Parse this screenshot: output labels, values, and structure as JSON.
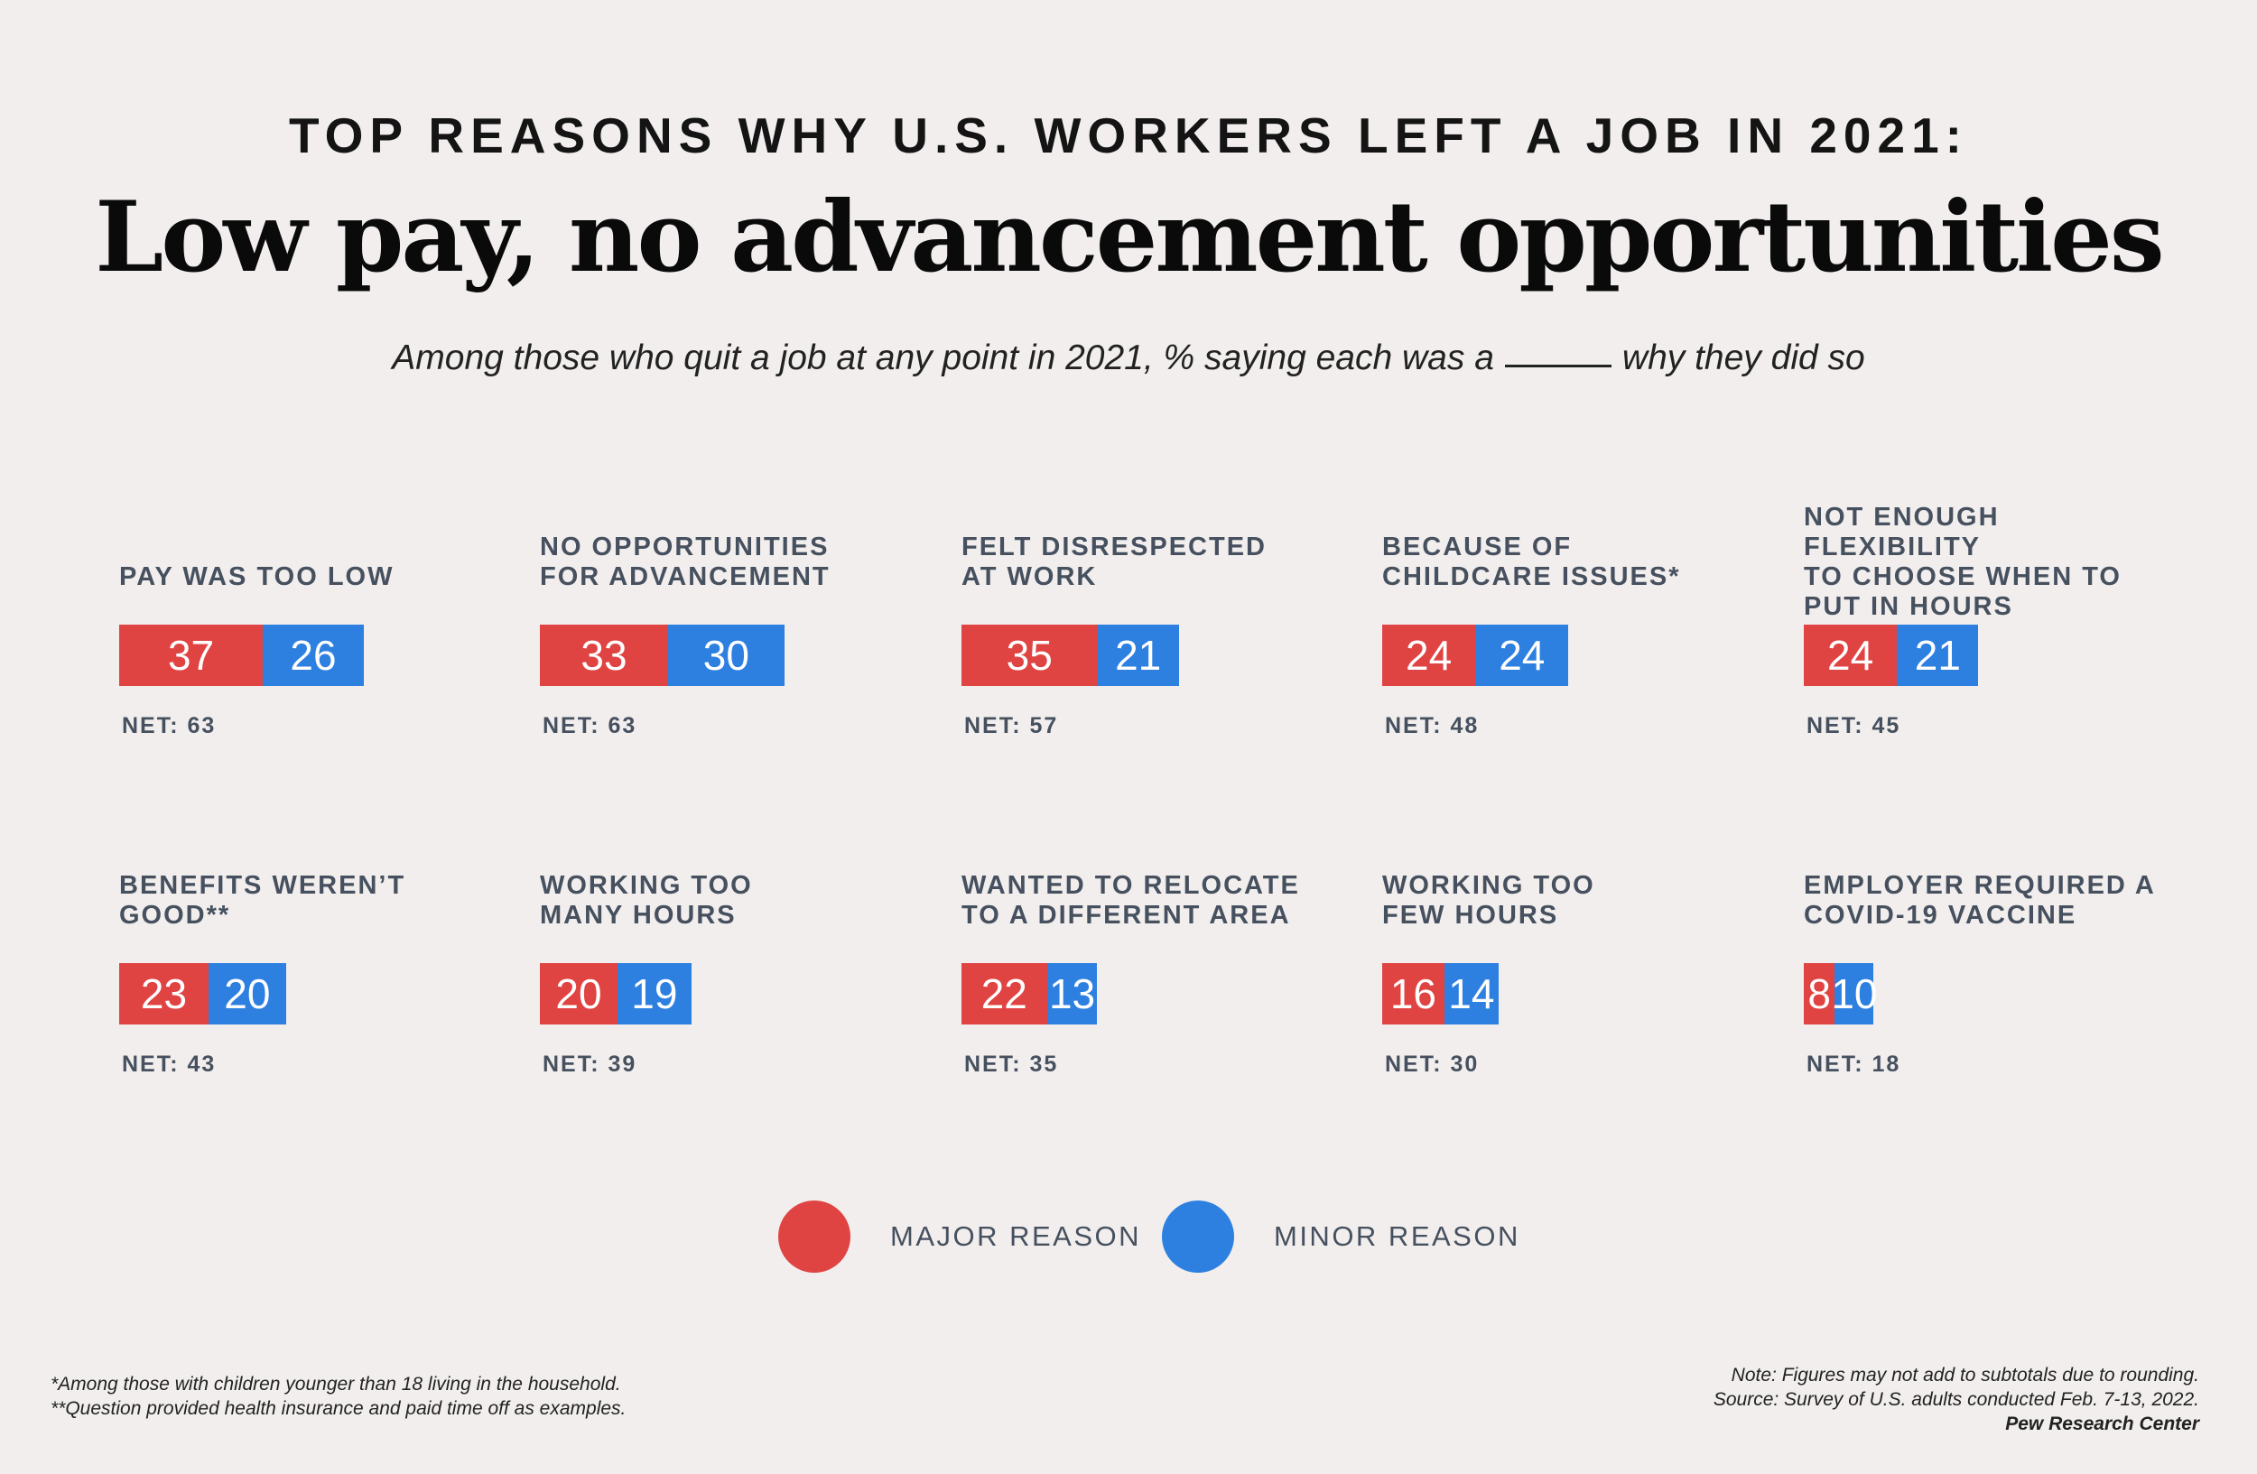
{
  "header": {
    "kicker": "TOP REASONS WHY U.S. WORKERS LEFT A JOB IN 2021:",
    "title": "Low pay, no advancement opportunities",
    "subtitle_before": "Among those who quit a job at any point in 2021, % saying each was a",
    "subtitle_after": "why they did so"
  },
  "colors": {
    "major": "#e04442",
    "minor": "#2d80e0",
    "background": "#f1eeed"
  },
  "chart_data": {
    "type": "bar",
    "orientation": "horizontal",
    "stacked": true,
    "series": [
      {
        "name": "MAJOR REASON",
        "values": [
          37,
          33,
          35,
          24,
          24,
          23,
          20,
          22,
          16,
          8
        ]
      },
      {
        "name": "MINOR REASON",
        "values": [
          26,
          30,
          21,
          24,
          21,
          20,
          19,
          13,
          14,
          10
        ]
      }
    ],
    "items": [
      {
        "label_lines": [
          "PAY WAS TOO LOW"
        ],
        "major": 37,
        "minor": 26,
        "net": "NET: 63"
      },
      {
        "label_lines": [
          "NO OPPORTUNITIES",
          "FOR ADVANCEMENT"
        ],
        "major": 33,
        "minor": 30,
        "net": "NET: 63"
      },
      {
        "label_lines": [
          "FELT DISRESPECTED",
          "AT WORK"
        ],
        "major": 35,
        "minor": 21,
        "net": "NET: 57"
      },
      {
        "label_lines": [
          "BECAUSE OF",
          "CHILDCARE ISSUES*"
        ],
        "major": 24,
        "minor": 24,
        "net": "NET: 48"
      },
      {
        "label_lines": [
          "NOT ENOUGH FLEXIBILITY",
          "TO CHOOSE WHEN TO",
          "PUT IN HOURS"
        ],
        "major": 24,
        "minor": 21,
        "net": "NET: 45"
      },
      {
        "label_lines": [
          "BENEFITS WEREN’T",
          "GOOD**"
        ],
        "major": 23,
        "minor": 20,
        "net": "NET: 43"
      },
      {
        "label_lines": [
          "WORKING TOO",
          "MANY HOURS"
        ],
        "major": 20,
        "minor": 19,
        "net": "NET: 39"
      },
      {
        "label_lines": [
          "WANTED TO RELOCATE",
          "TO A DIFFERENT AREA"
        ],
        "major": 22,
        "minor": 13,
        "net": "NET: 35"
      },
      {
        "label_lines": [
          "WORKING TOO",
          "FEW HOURS"
        ],
        "major": 16,
        "minor": 14,
        "net": "NET: 30"
      },
      {
        "label_lines": [
          "EMPLOYER REQUIRED A",
          "COVID-19 VACCINE"
        ],
        "major": 8,
        "minor": 10,
        "net": "NET: 18"
      }
    ]
  },
  "legend": {
    "major_label": "MAJOR REASON",
    "minor_label": "MINOR REASON"
  },
  "footer": {
    "note1": "*Among those with children younger than 18 living in the household.",
    "note2": "**Question provided health insurance and paid time off as examples.",
    "note3": "Note: Figures may not add to subtotals due to rounding.",
    "source": "Source: Survey of U.S. adults conducted Feb. 7-13, 2022.",
    "brand": "Pew Research Center"
  }
}
